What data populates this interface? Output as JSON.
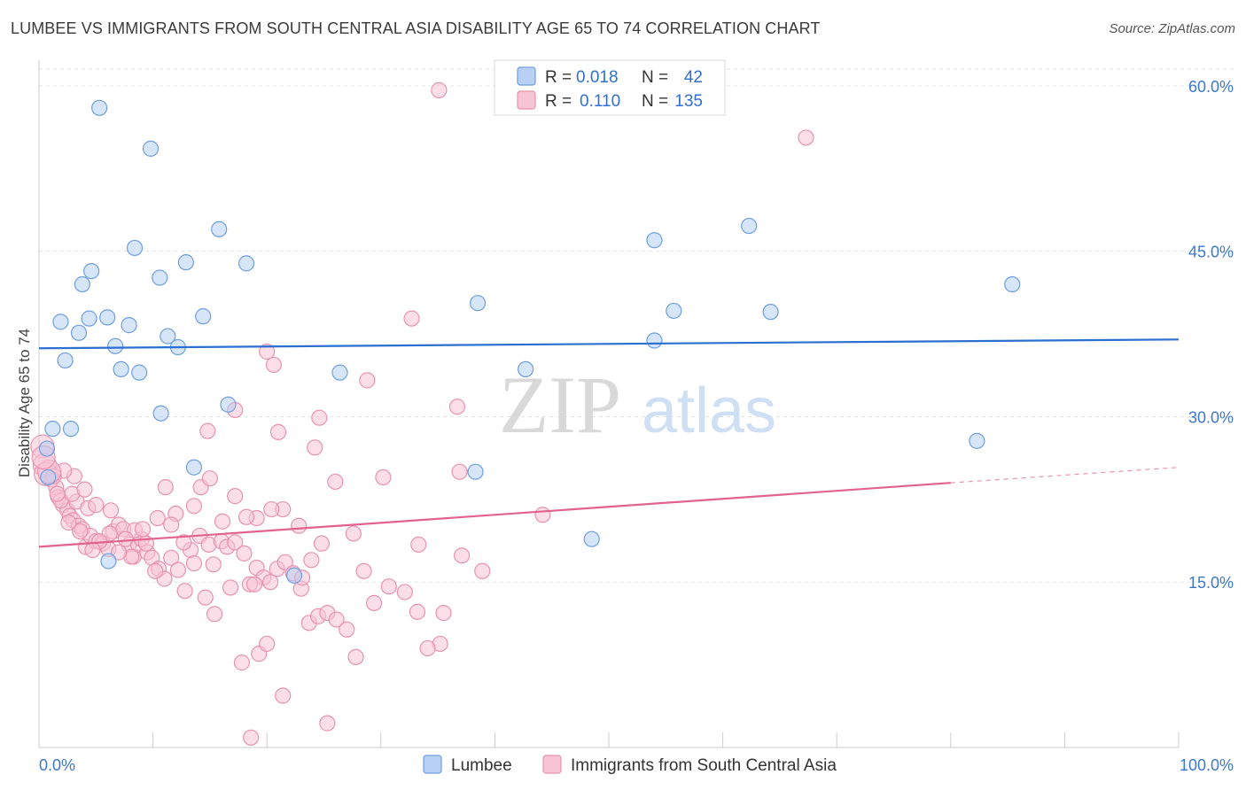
{
  "title": "LUMBEE VS IMMIGRANTS FROM SOUTH CENTRAL ASIA DISABILITY AGE 65 TO 74 CORRELATION CHART",
  "source": "Source: ZipAtlas.com",
  "watermark": {
    "zip": "ZIP",
    "atlas": "atlas"
  },
  "legend_top": [
    {
      "r_label": "R =",
      "r_value": "0.018",
      "n_label": "N =",
      "n_value": "42"
    },
    {
      "r_label": "R =",
      "r_value": "0.110",
      "n_label": "N =",
      "n_value": "135"
    }
  ],
  "chart_data": {
    "type": "scatter",
    "title": "LUMBEE VS IMMIGRANTS FROM SOUTH CENTRAL ASIA DISABILITY AGE 65 TO 74 CORRELATION CHART",
    "xlabel": "",
    "ylabel": "Disability Age 65 to 74",
    "xlim": [
      0,
      100
    ],
    "ylim": [
      0,
      62
    ],
    "x_tick_labels": [
      "0.0%",
      "100.0%"
    ],
    "y_ticks": [
      15,
      30,
      45,
      60
    ],
    "y_tick_labels": [
      "15.0%",
      "30.0%",
      "45.0%",
      "60.0%"
    ],
    "grid": true,
    "legend_position": "bottom-center",
    "series": [
      {
        "name": "Lumbee",
        "color": "#6e9fe0",
        "fill": "#b7d0f3",
        "r": 0.018,
        "n": 42,
        "trend": {
          "x0": 0,
          "y0": 36.2,
          "x1": 100,
          "y1": 37.0,
          "color": "#2b6fd0"
        },
        "points": [
          [
            5.3,
            58.0
          ],
          [
            9.8,
            54.3
          ],
          [
            15.8,
            47.0
          ],
          [
            8.4,
            45.3
          ],
          [
            12.9,
            44.0
          ],
          [
            18.2,
            43.9
          ],
          [
            4.6,
            43.2
          ],
          [
            10.6,
            42.6
          ],
          [
            3.8,
            42.0
          ],
          [
            1.9,
            38.6
          ],
          [
            4.4,
            38.9
          ],
          [
            6.0,
            39.0
          ],
          [
            7.9,
            38.3
          ],
          [
            14.4,
            39.1
          ],
          [
            11.3,
            37.3
          ],
          [
            3.5,
            37.6
          ],
          [
            6.7,
            36.4
          ],
          [
            12.2,
            36.3
          ],
          [
            2.3,
            35.1
          ],
          [
            7.2,
            34.3
          ],
          [
            8.8,
            34.0
          ],
          [
            26.4,
            34.0
          ],
          [
            10.7,
            30.3
          ],
          [
            16.6,
            31.1
          ],
          [
            1.2,
            28.9
          ],
          [
            2.8,
            28.9
          ],
          [
            0.7,
            27.1
          ],
          [
            13.6,
            25.4
          ],
          [
            0.8,
            24.5
          ],
          [
            38.3,
            25.0
          ],
          [
            6.1,
            16.9
          ],
          [
            22.4,
            15.6
          ],
          [
            42.7,
            34.3
          ],
          [
            38.5,
            40.3
          ],
          [
            48.5,
            18.9
          ],
          [
            54.0,
            36.9
          ],
          [
            55.7,
            39.6
          ],
          [
            54.0,
            46.0
          ],
          [
            62.3,
            47.3
          ],
          [
            64.2,
            39.5
          ],
          [
            82.3,
            27.8
          ],
          [
            85.4,
            42.0
          ]
        ]
      },
      {
        "name": "Immigrants from South Central Asia",
        "color": "#e893b0",
        "fill": "#f8c3d5",
        "r": 0.11,
        "n": 135,
        "trend": {
          "x0": 0,
          "y0": 18.2,
          "x1": 80,
          "y1": 24.0,
          "color": "#e2628e"
        },
        "trend_dashed": {
          "x0": 80,
          "y0": 24.0,
          "x1": 100,
          "y1": 25.4
        },
        "points": [
          [
            35.1,
            59.6
          ],
          [
            67.3,
            55.3
          ],
          [
            32.7,
            38.9
          ],
          [
            20.0,
            35.9
          ],
          [
            20.6,
            34.7
          ],
          [
            28.8,
            33.3
          ],
          [
            36.7,
            30.9
          ],
          [
            17.2,
            30.6
          ],
          [
            24.6,
            29.9
          ],
          [
            14.8,
            28.7
          ],
          [
            21.0,
            28.6
          ],
          [
            24.2,
            27.2
          ],
          [
            0.3,
            27.3
          ],
          [
            0.5,
            25.6
          ],
          [
            0.6,
            24.8
          ],
          [
            1.1,
            24.3
          ],
          [
            1.5,
            23.6
          ],
          [
            1.7,
            22.7
          ],
          [
            2.1,
            22.0
          ],
          [
            2.5,
            21.5
          ],
          [
            1.9,
            22.4
          ],
          [
            2.7,
            21.0
          ],
          [
            3.0,
            20.6
          ],
          [
            3.5,
            20.1
          ],
          [
            3.3,
            22.3
          ],
          [
            2.9,
            23.0
          ],
          [
            3.8,
            19.8
          ],
          [
            4.1,
            18.2
          ],
          [
            4.5,
            19.2
          ],
          [
            5.0,
            18.7
          ],
          [
            4.3,
            21.7
          ],
          [
            5.6,
            18.5
          ],
          [
            6.1,
            18.0
          ],
          [
            6.5,
            19.6
          ],
          [
            7.0,
            20.2
          ],
          [
            7.4,
            19.8
          ],
          [
            7.9,
            18.4
          ],
          [
            8.3,
            17.3
          ],
          [
            8.7,
            18.4
          ],
          [
            9.0,
            18.9
          ],
          [
            9.5,
            17.7
          ],
          [
            9.9,
            17.2
          ],
          [
            10.5,
            16.2
          ],
          [
            11.0,
            15.3
          ],
          [
            11.6,
            17.2
          ],
          [
            12.2,
            16.1
          ],
          [
            12.8,
            14.2
          ],
          [
            13.3,
            17.9
          ],
          [
            13.6,
            16.7
          ],
          [
            14.1,
            19.2
          ],
          [
            14.9,
            18.4
          ],
          [
            15.3,
            16.6
          ],
          [
            16.0,
            18.7
          ],
          [
            16.5,
            18.2
          ],
          [
            17.2,
            18.6
          ],
          [
            18.0,
            17.6
          ],
          [
            18.5,
            14.8
          ],
          [
            19.1,
            16.3
          ],
          [
            19.7,
            15.4
          ],
          [
            20.3,
            15.0
          ],
          [
            20.9,
            16.2
          ],
          [
            21.6,
            16.8
          ],
          [
            22.3,
            15.8
          ],
          [
            23.0,
            14.4
          ],
          [
            23.7,
            11.3
          ],
          [
            24.5,
            11.9
          ],
          [
            25.3,
            12.2
          ],
          [
            26.1,
            11.6
          ],
          [
            27.0,
            10.7
          ],
          [
            27.8,
            8.2
          ],
          [
            28.5,
            16.0
          ],
          [
            29.4,
            13.1
          ],
          [
            30.7,
            14.6
          ],
          [
            32.1,
            14.1
          ],
          [
            33.2,
            12.3
          ],
          [
            35.2,
            9.4
          ],
          [
            34.1,
            9.0
          ],
          [
            35.5,
            12.2
          ],
          [
            37.1,
            17.4
          ],
          [
            38.9,
            16.0
          ],
          [
            36.9,
            25.0
          ],
          [
            44.2,
            21.1
          ],
          [
            33.3,
            18.4
          ],
          [
            30.2,
            24.5
          ],
          [
            27.6,
            19.4
          ],
          [
            24.8,
            18.5
          ],
          [
            23.9,
            17.0
          ],
          [
            22.8,
            20.1
          ],
          [
            21.4,
            21.6
          ],
          [
            20.4,
            21.6
          ],
          [
            19.1,
            20.8
          ],
          [
            17.2,
            22.8
          ],
          [
            16.1,
            20.5
          ],
          [
            14.2,
            23.6
          ],
          [
            13.6,
            21.9
          ],
          [
            12.0,
            21.2
          ],
          [
            11.1,
            23.6
          ],
          [
            10.4,
            20.8
          ],
          [
            9.4,
            18.5
          ],
          [
            8.4,
            19.7
          ],
          [
            7.6,
            18.9
          ],
          [
            6.3,
            21.5
          ],
          [
            5.0,
            22.0
          ],
          [
            4.0,
            23.4
          ],
          [
            3.1,
            24.6
          ],
          [
            2.2,
            25.1
          ],
          [
            1.3,
            24.6
          ],
          [
            0.9,
            25.0
          ],
          [
            15.0,
            24.4
          ],
          [
            18.2,
            20.9
          ],
          [
            26.0,
            24.1
          ],
          [
            17.8,
            7.7
          ],
          [
            21.4,
            4.7
          ],
          [
            25.3,
            2.2
          ],
          [
            18.6,
            0.9
          ],
          [
            19.3,
            8.5
          ],
          [
            20.0,
            9.4
          ],
          [
            23.1,
            15.4
          ],
          [
            15.4,
            12.1
          ],
          [
            16.8,
            14.5
          ],
          [
            14.6,
            13.6
          ],
          [
            12.7,
            18.6
          ],
          [
            11.6,
            20.2
          ],
          [
            10.2,
            16.0
          ],
          [
            9.1,
            19.8
          ],
          [
            8.1,
            17.3
          ],
          [
            7.0,
            17.7
          ],
          [
            6.2,
            19.4
          ],
          [
            5.3,
            18.7
          ],
          [
            4.7,
            17.9
          ],
          [
            3.6,
            19.6
          ],
          [
            2.6,
            20.4
          ],
          [
            1.6,
            23.0
          ],
          [
            0.4,
            26.3
          ],
          [
            18.9,
            14.8
          ]
        ]
      }
    ]
  }
}
